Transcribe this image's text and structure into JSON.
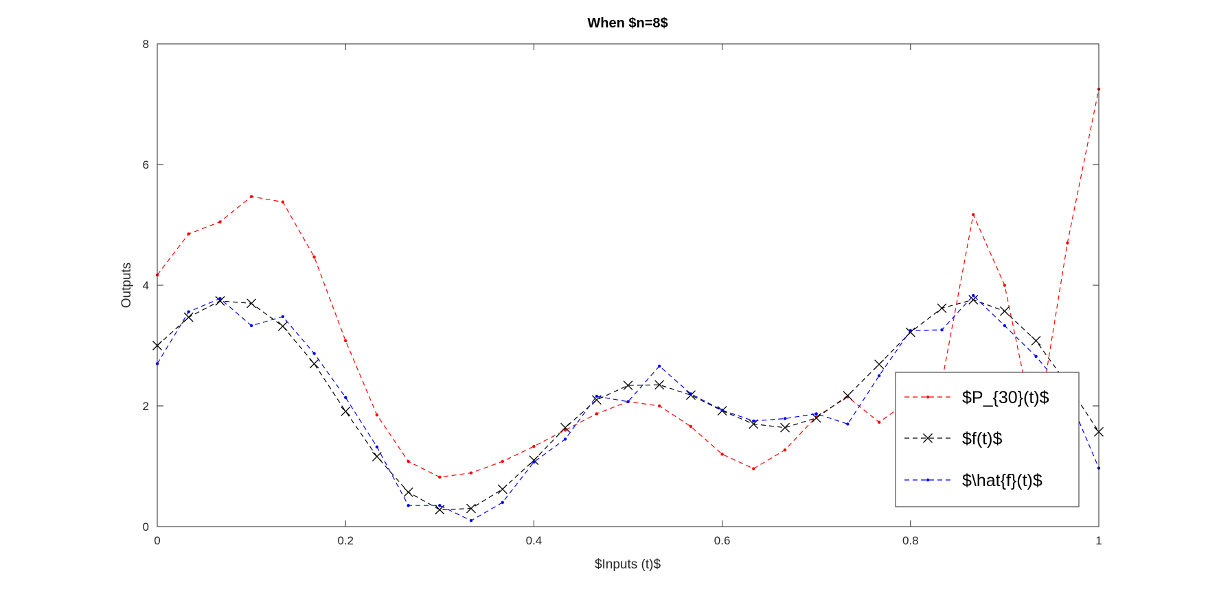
{
  "chart_data": {
    "type": "line",
    "title": "When $n=8$",
    "xlabel": "$Inputs (t)$",
    "ylabel": "Outputs",
    "xlim": [
      0,
      1
    ],
    "ylim": [
      0,
      8
    ],
    "xticks": [
      "0",
      "0.2",
      "0.4",
      "0.6",
      "0.8",
      "1"
    ],
    "xtick_values": [
      0,
      0.2,
      0.4,
      0.6,
      0.8,
      1
    ],
    "yticks": [
      "0",
      "2",
      "4",
      "6",
      "8"
    ],
    "ytick_values": [
      0,
      2,
      4,
      6,
      8
    ],
    "grid": false,
    "legend_position": "right",
    "x": [
      0,
      0.0333,
      0.0667,
      0.1,
      0.1333,
      0.1667,
      0.2,
      0.2333,
      0.2667,
      0.3,
      0.3333,
      0.3667,
      0.4,
      0.4333,
      0.4667,
      0.5,
      0.5333,
      0.5667,
      0.6,
      0.6333,
      0.6667,
      0.7,
      0.7333,
      0.7667,
      0.8,
      0.8333,
      0.8667,
      0.9,
      0.9333,
      0.9667,
      1
    ],
    "series": [
      {
        "name": "$P_{30}(t)$",
        "color": "#ff0000",
        "marker": "dot",
        "values": [
          4.17,
          4.85,
          5.05,
          5.47,
          5.38,
          4.47,
          3.08,
          1.85,
          1.08,
          0.82,
          0.89,
          1.08,
          1.33,
          1.6,
          1.87,
          2.07,
          2.0,
          1.66,
          1.2,
          0.96,
          1.27,
          1.82,
          2.15,
          1.73,
          2.1,
          2.4,
          5.17,
          4.0,
          1.5,
          4.7,
          7.25
        ]
      },
      {
        "name": "$f(t)$",
        "color": "#000000",
        "marker": "x",
        "values": [
          3.0,
          3.47,
          3.74,
          3.7,
          3.32,
          2.7,
          1.91,
          1.16,
          0.57,
          0.28,
          0.3,
          0.62,
          1.1,
          1.64,
          2.1,
          2.34,
          2.35,
          2.18,
          1.92,
          1.7,
          1.64,
          1.8,
          2.17,
          2.69,
          3.22,
          3.62,
          3.76,
          3.57,
          3.08,
          2.36,
          1.57
        ]
      },
      {
        "name": "$\\hat{f}(t)$",
        "color": "#0000ff",
        "marker": "dot",
        "values": [
          2.7,
          3.56,
          3.78,
          3.33,
          3.48,
          2.87,
          2.14,
          1.32,
          0.35,
          0.35,
          0.1,
          0.4,
          1.07,
          1.45,
          2.16,
          2.07,
          2.66,
          2.2,
          1.93,
          1.75,
          1.79,
          1.87,
          1.7,
          2.5,
          3.25,
          3.26,
          3.83,
          3.33,
          2.82,
          2.2,
          0.97
        ]
      }
    ]
  }
}
